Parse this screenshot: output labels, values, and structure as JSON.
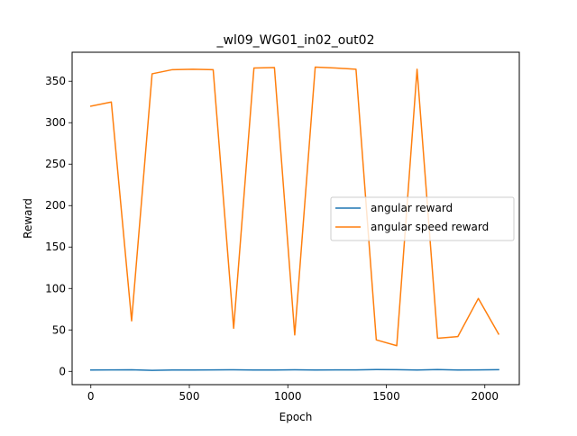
{
  "chart_data": {
    "type": "line",
    "title": "_wl09_WG01_in02_out02",
    "xlabel": "Epoch",
    "ylabel": "Reward",
    "xlim": [
      -95,
      2175
    ],
    "ylim": [
      -16,
      385
    ],
    "xticks": [
      0,
      500,
      1000,
      1500,
      2000
    ],
    "yticks": [
      0,
      50,
      100,
      150,
      200,
      250,
      300,
      350
    ],
    "grid": false,
    "legend_position": "center-right",
    "x": [
      0,
      104,
      207,
      311,
      414,
      518,
      621,
      725,
      828,
      932,
      1035,
      1139,
      1242,
      1346,
      1449,
      1553,
      1656,
      1760,
      1863,
      1967,
      2070
    ],
    "series": [
      {
        "name": "angular reward",
        "color": "#1f77b4",
        "values": [
          1.6,
          1.8,
          2.0,
          1.2,
          1.6,
          1.7,
          1.8,
          1.9,
          1.6,
          1.7,
          1.9,
          1.7,
          1.8,
          1.8,
          2.2,
          2.1,
          1.6,
          2.2,
          1.7,
          1.8,
          2.0
        ]
      },
      {
        "name": "angular speed reward",
        "color": "#ff7f0e",
        "values": [
          320,
          325,
          61,
          359,
          364,
          364.5,
          364,
          52,
          366,
          366.5,
          44,
          367,
          366,
          364.5,
          38,
          31,
          364.5,
          40,
          42,
          88,
          45
        ]
      }
    ]
  }
}
